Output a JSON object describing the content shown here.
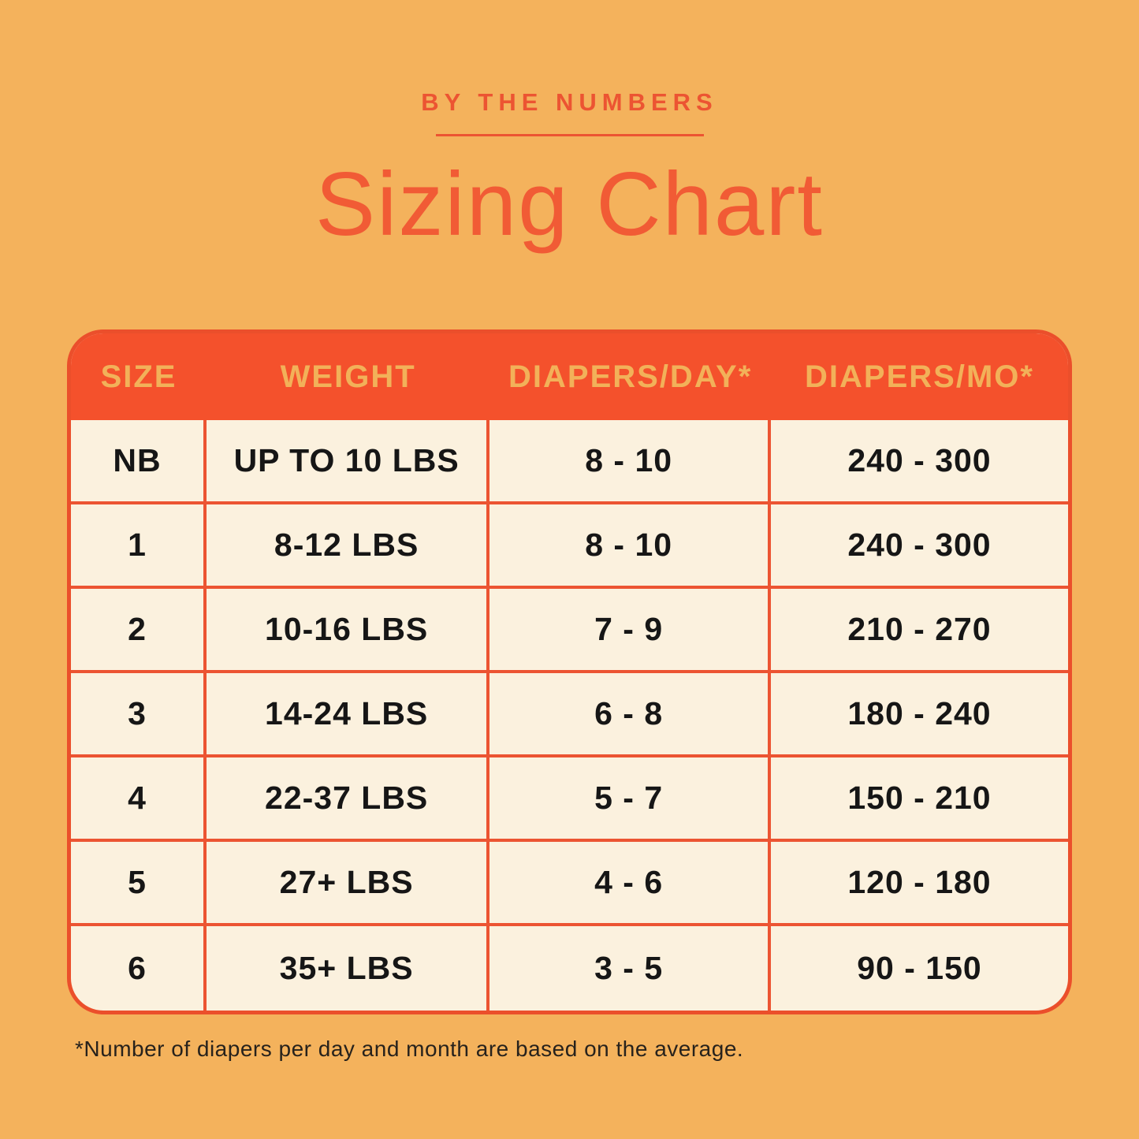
{
  "header": {
    "eyebrow": "BY THE NUMBERS",
    "title": "Sizing Chart"
  },
  "chart_data": {
    "type": "table",
    "title": "Sizing Chart",
    "columns": [
      "SIZE",
      "WEIGHT",
      "DIAPERS/DAY*",
      "DIAPERS/MO*"
    ],
    "rows": [
      [
        "NB",
        "UP TO 10 LBS",
        "8 - 10",
        "240 - 300"
      ],
      [
        "1",
        "8-12 LBS",
        "8 - 10",
        "240 - 300"
      ],
      [
        "2",
        "10-16 LBS",
        "7 - 9",
        "210 - 270"
      ],
      [
        "3",
        "14-24 LBS",
        "6 - 8",
        "180 - 240"
      ],
      [
        "4",
        "22-37 LBS",
        "5 - 7",
        "150 - 210"
      ],
      [
        "5",
        "27+ LBS",
        "4 - 6",
        "120 - 180"
      ],
      [
        "6",
        "35+ LBS",
        "3 - 5",
        "90 - 150"
      ]
    ]
  },
  "footer": {
    "note": "*Number of diapers per day and month are based on the average."
  },
  "colors": {
    "background": "#F4B25C",
    "accent_red_orange": "#EC5432",
    "header_fill": "#F4512C",
    "header_text_gold": "#F2B159",
    "table_body_cream": "#FBF1DE",
    "body_text": "#161616"
  }
}
